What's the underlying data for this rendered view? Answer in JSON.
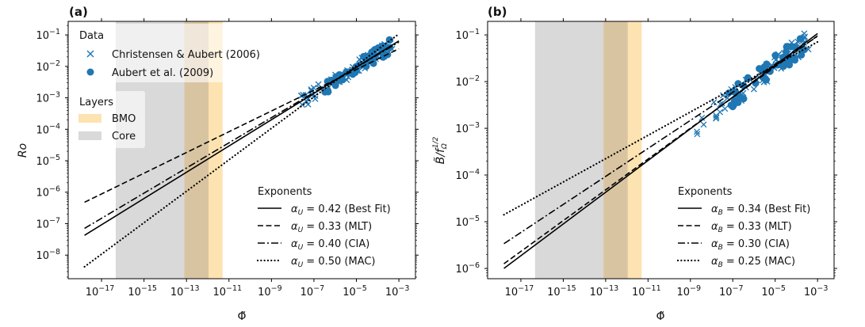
{
  "colors": {
    "data_marker": "#1f77b4",
    "core_band": "#d9d9d9",
    "bmo_band": "#fde3b1",
    "overlap_band": "#d9c4a2",
    "line": "#000000"
  },
  "chart_data": [
    {
      "type": "line",
      "panel_label": "(a)",
      "xlabel": "Φ̃",
      "ylabel": "Ro",
      "xscale": "log",
      "yscale": "log",
      "xlim_log10": [
        -18.57,
        -2.22
      ],
      "ylim_log10": [
        -8.75,
        -0.57
      ],
      "xticks_log10": [
        -17,
        -15,
        -13,
        -11,
        -9,
        -7,
        -5,
        -3
      ],
      "xtick_labels": [
        "10",
        "10",
        "10",
        "10",
        "10",
        "10",
        "10",
        "10"
      ],
      "xtick_exponents": [
        "−17",
        "−15",
        "−13",
        "−11",
        "−9",
        "−7",
        "−5",
        "−3"
      ],
      "yticks_log10": [
        -8,
        -7,
        -6,
        -5,
        -4,
        -3,
        -2,
        -1
      ],
      "ytick_labels": [
        "10",
        "10",
        "10",
        "10",
        "10",
        "10",
        "10",
        "10"
      ],
      "ytick_exponents": [
        "−8",
        "−7",
        "−6",
        "−5",
        "−4",
        "−3",
        "−2",
        "−1"
      ],
      "bands": [
        {
          "name": "Core",
          "x_log10": [
            -16.33,
            -11.96
          ]
        },
        {
          "name": "BMO",
          "x_log10": [
            -13.1,
            -11.3
          ]
        }
      ],
      "series": [
        {
          "name": "α_U = 0.42 (Best Fit)",
          "style": "solid",
          "exponent": 0.42,
          "x_log10": [
            -17.8,
            -3
          ],
          "y_log10": [
            -7.37,
            -1.19
          ]
        },
        {
          "name": "α_U = 0.33 (MLT)",
          "style": "dashed",
          "exponent": 0.33,
          "x_log10": [
            -17.8,
            -3
          ],
          "y_log10": [
            -6.32,
            -1.44
          ]
        },
        {
          "name": "α_U = 0.40 (CIA)",
          "style": "dashdot",
          "exponent": 0.4,
          "x_log10": [
            -17.8,
            -3
          ],
          "y_log10": [
            -7.15,
            -1.23
          ]
        },
        {
          "name": "α_U = 0.50 (MAC)",
          "style": "dotted",
          "exponent": 0.5,
          "x_log10": [
            -17.8,
            -3
          ],
          "y_log10": [
            -8.37,
            -0.97
          ]
        }
      ],
      "scatter": [
        {
          "name": "Christensen & Aubert (2006)",
          "marker": "x",
          "x_log10_range": [
            -7.6,
            -3.3
          ],
          "slope": 0.42,
          "intercept_log10": 0.1
        },
        {
          "name": "Aubert et al. (2009)",
          "marker": "o",
          "x_log10_range": [
            -6.6,
            -3.4
          ],
          "slope": 0.42,
          "intercept_log10": 0.1
        }
      ],
      "legends": {
        "data": {
          "title": "Data",
          "items": [
            "Christensen & Aubert (2006)",
            "Aubert et al. (2009)"
          ]
        },
        "layers": {
          "title": "Layers",
          "items": [
            "BMO",
            "Core"
          ]
        },
        "exponents": {
          "title": "Exponents",
          "items": [
            {
              "sym": "α",
              "sub": "U",
              "text": " = 0.42 (Best Fit)"
            },
            {
              "sym": "α",
              "sub": "U",
              "text": " = 0.33 (MLT)"
            },
            {
              "sym": "α",
              "sub": "U",
              "text": " = 0.40 (CIA)"
            },
            {
              "sym": "α",
              "sub": "U",
              "text": " = 0.50 (MAC)"
            }
          ]
        }
      }
    },
    {
      "type": "line",
      "panel_label": "(b)",
      "xlabel": "Φ̃",
      "ylabel": "B̃/f",
      "ylabel_sub": "Ω",
      "ylabel_sup": "1/2",
      "xscale": "log",
      "yscale": "log",
      "xlim_log10": [
        -18.57,
        -2.22
      ],
      "ylim_log10": [
        -6.22,
        -0.71
      ],
      "xticks_log10": [
        -17,
        -15,
        -13,
        -11,
        -9,
        -7,
        -5,
        -3
      ],
      "xtick_labels": [
        "10",
        "10",
        "10",
        "10",
        "10",
        "10",
        "10",
        "10"
      ],
      "xtick_exponents": [
        "−17",
        "−15",
        "−13",
        "−11",
        "−9",
        "−7",
        "−5",
        "−3"
      ],
      "yticks_log10": [
        -6,
        -5,
        -4,
        -3,
        -2,
        -1
      ],
      "ytick_labels": [
        "10",
        "10",
        "10",
        "10",
        "10",
        "10"
      ],
      "ytick_exponents": [
        "−6",
        "−5",
        "−4",
        "−3",
        "−2",
        "−1"
      ],
      "bands": [
        {
          "name": "Core",
          "x_log10": [
            -16.33,
            -11.96
          ]
        },
        {
          "name": "BMO",
          "x_log10": [
            -13.1,
            -11.3
          ]
        }
      ],
      "series": [
        {
          "name": "α_B = 0.34 (Best Fit)",
          "style": "solid",
          "exponent": 0.34,
          "x_log10": [
            -17.8,
            -3
          ],
          "y_log10": [
            -6.0,
            -0.97
          ]
        },
        {
          "name": "α_B = 0.33 (MLT)",
          "style": "dashed",
          "exponent": 0.33,
          "x_log10": [
            -17.8,
            -3
          ],
          "y_log10": [
            -5.9,
            -1.02
          ]
        },
        {
          "name": "α_B = 0.30 (CIA)",
          "style": "dashdot",
          "exponent": 0.3,
          "x_log10": [
            -17.8,
            -3
          ],
          "y_log10": [
            -5.47,
            -1.03
          ]
        },
        {
          "name": "α_B = 0.25 (MAC)",
          "style": "dotted",
          "exponent": 0.25,
          "x_log10": [
            -17.8,
            -3
          ],
          "y_log10": [
            -4.85,
            -1.15
          ]
        }
      ],
      "scatter": [
        {
          "name": "Christensen & Aubert (2006)",
          "marker": "x",
          "x_log10_range": [
            -8.7,
            -3.4
          ],
          "slope": 0.34,
          "intercept_log10": 0.05
        },
        {
          "name": "Aubert et al. (2009)",
          "marker": "o",
          "x_log10_range": [
            -7.2,
            -3.6
          ],
          "slope": 0.34,
          "intercept_log10": 0.05
        }
      ],
      "legends": {
        "exponents": {
          "title": "Exponents",
          "items": [
            {
              "sym": "α",
              "sub": "B",
              "text": " = 0.34 (Best Fit)"
            },
            {
              "sym": "α",
              "sub": "B",
              "text": " = 0.33 (MLT)"
            },
            {
              "sym": "α",
              "sub": "B",
              "text": " = 0.30 (CIA)"
            },
            {
              "sym": "α",
              "sub": "B",
              "text": " = 0.25 (MAC)"
            }
          ]
        }
      }
    }
  ]
}
